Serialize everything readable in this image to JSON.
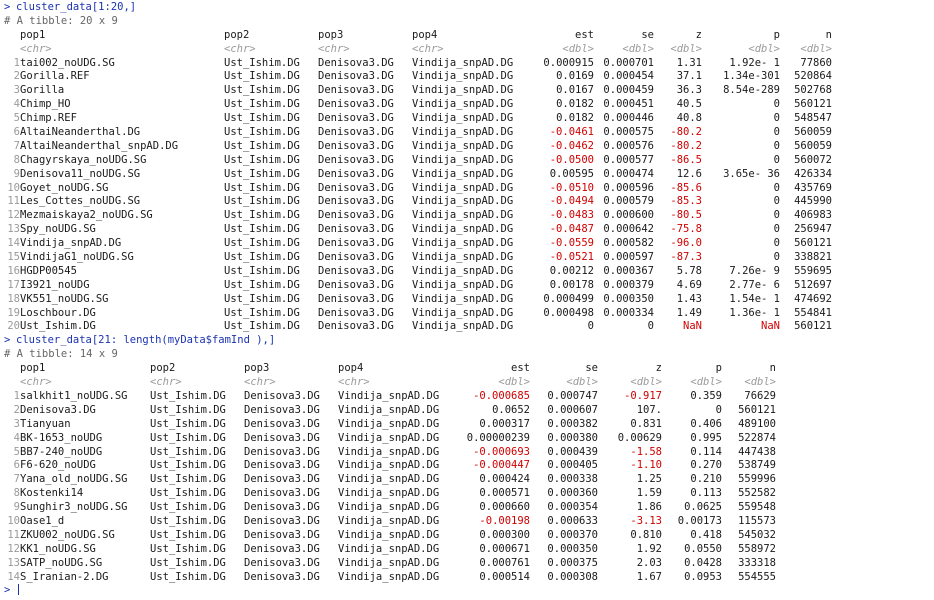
{
  "block1": {
    "command": "cluster_data[1:20,]",
    "meta": "# A tibble: 20 x 9",
    "headers": [
      "pop1",
      "pop2",
      "pop3",
      "pop4",
      "est",
      "se",
      "z",
      "p",
      "n"
    ],
    "types": [
      "<chr>",
      "<chr>",
      "<chr>",
      "<chr>",
      "<dbl>",
      "<dbl>",
      "<dbl>",
      "<dbl>",
      "<dbl>"
    ],
    "rows": [
      [
        "1",
        "tai002_noUDG.SG",
        "Ust_Ishim.DG",
        "Denisova3.DG",
        "Vindija_snpAD.DG",
        "0.000915",
        "0.000701",
        "1.31",
        "1.92e- 1",
        "77860"
      ],
      [
        "2",
        "Gorilla.REF",
        "Ust_Ishim.DG",
        "Denisova3.DG",
        "Vindija_snpAD.DG",
        "0.0169",
        "0.000454",
        "37.1",
        "1.34e-301",
        "520864"
      ],
      [
        "3",
        "Gorilla",
        "Ust_Ishim.DG",
        "Denisova3.DG",
        "Vindija_snpAD.DG",
        "0.0167",
        "0.000459",
        "36.3",
        "8.54e-289",
        "502768"
      ],
      [
        "4",
        "Chimp_HO",
        "Ust_Ishim.DG",
        "Denisova3.DG",
        "Vindija_snpAD.DG",
        "0.0182",
        "0.000451",
        "40.5",
        "0",
        "560121"
      ],
      [
        "5",
        "Chimp.REF",
        "Ust_Ishim.DG",
        "Denisova3.DG",
        "Vindija_snpAD.DG",
        "0.0182",
        "0.000446",
        "40.8",
        "0",
        "548547"
      ],
      [
        "6",
        "AltaiNeanderthal.DG",
        "Ust_Ishim.DG",
        "Denisova3.DG",
        "Vindija_snpAD.DG",
        "-0.0461",
        "0.000575",
        "-80.2",
        "0",
        "560059"
      ],
      [
        "7",
        "AltaiNeanderthal_snpAD.DG",
        "Ust_Ishim.DG",
        "Denisova3.DG",
        "Vindija_snpAD.DG",
        "-0.0462",
        "0.000576",
        "-80.2",
        "0",
        "560059"
      ],
      [
        "8",
        "Chagyrskaya_noUDG.SG",
        "Ust_Ishim.DG",
        "Denisova3.DG",
        "Vindija_snpAD.DG",
        "-0.0500",
        "0.000577",
        "-86.5",
        "0",
        "560072"
      ],
      [
        "9",
        "Denisova11_noUDG.SG",
        "Ust_Ishim.DG",
        "Denisova3.DG",
        "Vindija_snpAD.DG",
        "0.00595",
        "0.000474",
        "12.6",
        "3.65e- 36",
        "426334"
      ],
      [
        "10",
        "Goyet_noUDG.SG",
        "Ust_Ishim.DG",
        "Denisova3.DG",
        "Vindija_snpAD.DG",
        "-0.0510",
        "0.000596",
        "-85.6",
        "0",
        "435769"
      ],
      [
        "11",
        "Les_Cottes_noUDG.SG",
        "Ust_Ishim.DG",
        "Denisova3.DG",
        "Vindija_snpAD.DG",
        "-0.0494",
        "0.000579",
        "-85.3",
        "0",
        "445990"
      ],
      [
        "12",
        "Mezmaiskaya2_noUDG.SG",
        "Ust_Ishim.DG",
        "Denisova3.DG",
        "Vindija_snpAD.DG",
        "-0.0483",
        "0.000600",
        "-80.5",
        "0",
        "406983"
      ],
      [
        "13",
        "Spy_noUDG.SG",
        "Ust_Ishim.DG",
        "Denisova3.DG",
        "Vindija_snpAD.DG",
        "-0.0487",
        "0.000642",
        "-75.8",
        "0",
        "256947"
      ],
      [
        "14",
        "Vindija_snpAD.DG",
        "Ust_Ishim.DG",
        "Denisova3.DG",
        "Vindija_snpAD.DG",
        "-0.0559",
        "0.000582",
        "-96.0",
        "0",
        "560121"
      ],
      [
        "15",
        "VindijaG1_noUDG.SG",
        "Ust_Ishim.DG",
        "Denisova3.DG",
        "Vindija_snpAD.DG",
        "-0.0521",
        "0.000597",
        "-87.3",
        "0",
        "338821"
      ],
      [
        "16",
        "HGDP00545",
        "Ust_Ishim.DG",
        "Denisova3.DG",
        "Vindija_snpAD.DG",
        "0.00212",
        "0.000367",
        "5.78",
        "7.26e- 9",
        "559695"
      ],
      [
        "17",
        "I3921_noUDG",
        "Ust_Ishim.DG",
        "Denisova3.DG",
        "Vindija_snpAD.DG",
        "0.00178",
        "0.000379",
        "4.69",
        "2.77e- 6",
        "512697"
      ],
      [
        "18",
        "VK551_noUDG.SG",
        "Ust_Ishim.DG",
        "Denisova3.DG",
        "Vindija_snpAD.DG",
        "0.000499",
        "0.000350",
        "1.43",
        "1.54e- 1",
        "474692"
      ],
      [
        "19",
        "Loschbour.DG",
        "Ust_Ishim.DG",
        "Denisova3.DG",
        "Vindija_snpAD.DG",
        "0.000498",
        "0.000334",
        "1.49",
        "1.36e- 1",
        "554841"
      ],
      [
        "20",
        "Ust_Ishim.DG",
        "Ust_Ishim.DG",
        "Denisova3.DG",
        "Vindija_snpAD.DG",
        "0",
        "0",
        "NaN",
        "NaN",
        "560121"
      ]
    ]
  },
  "block2": {
    "command": "cluster_data[21: length(myData$famInd ),]",
    "meta": "# A tibble: 14 x 9",
    "headers": [
      "pop1",
      "pop2",
      "pop3",
      "pop4",
      "est",
      "se",
      "z",
      "p",
      "n"
    ],
    "types": [
      "<chr>",
      "<chr>",
      "<chr>",
      "<chr>",
      "<dbl>",
      "<dbl>",
      "<dbl>",
      "<dbl>",
      "<dbl>"
    ],
    "rows": [
      [
        "1",
        "salkhit1_noUDG.SG",
        "Ust_Ishim.DG",
        "Denisova3.DG",
        "Vindija_snpAD.DG",
        "-0.000685",
        "0.000747",
        "-0.917",
        "0.359",
        "76629"
      ],
      [
        "2",
        "Denisova3.DG",
        "Ust_Ishim.DG",
        "Denisova3.DG",
        "Vindija_snpAD.DG",
        "0.0652",
        "0.000607",
        "107.",
        "0",
        "560121"
      ],
      [
        "3",
        "Tianyuan",
        "Ust_Ishim.DG",
        "Denisova3.DG",
        "Vindija_snpAD.DG",
        "0.000317",
        "0.000382",
        "0.831",
        "0.406",
        "489100"
      ],
      [
        "4",
        "BK-1653_noUDG",
        "Ust_Ishim.DG",
        "Denisova3.DG",
        "Vindija_snpAD.DG",
        "0.00000239",
        "0.000380",
        "0.00629",
        "0.995",
        "522874"
      ],
      [
        "5",
        "BB7-240_noUDG",
        "Ust_Ishim.DG",
        "Denisova3.DG",
        "Vindija_snpAD.DG",
        "-0.000693",
        "0.000439",
        "-1.58",
        "0.114",
        "447438"
      ],
      [
        "6",
        "F6-620_noUDG",
        "Ust_Ishim.DG",
        "Denisova3.DG",
        "Vindija_snpAD.DG",
        "-0.000447",
        "0.000405",
        "-1.10",
        "0.270",
        "538749"
      ],
      [
        "7",
        "Yana_old_noUDG.SG",
        "Ust_Ishim.DG",
        "Denisova3.DG",
        "Vindija_snpAD.DG",
        "0.000424",
        "0.000338",
        "1.25",
        "0.210",
        "559996"
      ],
      [
        "8",
        "Kostenki14",
        "Ust_Ishim.DG",
        "Denisova3.DG",
        "Vindija_snpAD.DG",
        "0.000571",
        "0.000360",
        "1.59",
        "0.113",
        "552582"
      ],
      [
        "9",
        "Sunghir3_noUDG.SG",
        "Ust_Ishim.DG",
        "Denisova3.DG",
        "Vindija_snpAD.DG",
        "0.000660",
        "0.000354",
        "1.86",
        "0.0625",
        "559548"
      ],
      [
        "10",
        "Oase1_d",
        "Ust_Ishim.DG",
        "Denisova3.DG",
        "Vindija_snpAD.DG",
        "-0.00198",
        "0.000633",
        "-3.13",
        "0.00173",
        "115573"
      ],
      [
        "11",
        "ZKU002_noUDG.SG",
        "Ust_Ishim.DG",
        "Denisova3.DG",
        "Vindija_snpAD.DG",
        "0.000300",
        "0.000370",
        "0.810",
        "0.418",
        "545032"
      ],
      [
        "12",
        "KK1_noUDG.SG",
        "Ust_Ishim.DG",
        "Denisova3.DG",
        "Vindija_snpAD.DG",
        "0.000671",
        "0.000350",
        "1.92",
        "0.0550",
        "558972"
      ],
      [
        "13",
        "SATP_noUDG.SG",
        "Ust_Ishim.DG",
        "Denisova3.DG",
        "Vindija_snpAD.DG",
        "0.000761",
        "0.000375",
        "2.03",
        "0.0428",
        "333318"
      ],
      [
        "14",
        "S_Iranian-2.DG",
        "Ust_Ishim.DG",
        "Denisova3.DG",
        "Vindija_snpAD.DG",
        "0.000514",
        "0.000308",
        "1.67",
        "0.0953",
        "554555"
      ]
    ]
  },
  "prompt": {
    "symbol": ">",
    "input": ""
  }
}
